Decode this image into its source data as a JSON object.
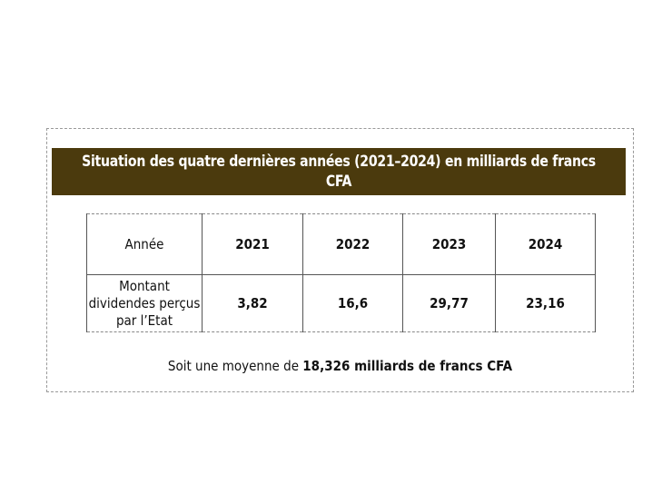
{
  "title": "Situation des quatre dernières années (2021–2024) en milliards de francs CFA",
  "table": {
    "header_label": "Année",
    "years": [
      "2021",
      "2022",
      "2023",
      "2024"
    ],
    "row_label": "Montant dividendes perçus par l’Etat",
    "values": [
      "3,82",
      "16,6",
      "29,77",
      "23,16"
    ]
  },
  "footer": {
    "prefix": "Soit une moyenne de ",
    "highlight": "18,326 milliards de francs CFA"
  },
  "colors": {
    "banner": "#4b3a0d"
  }
}
